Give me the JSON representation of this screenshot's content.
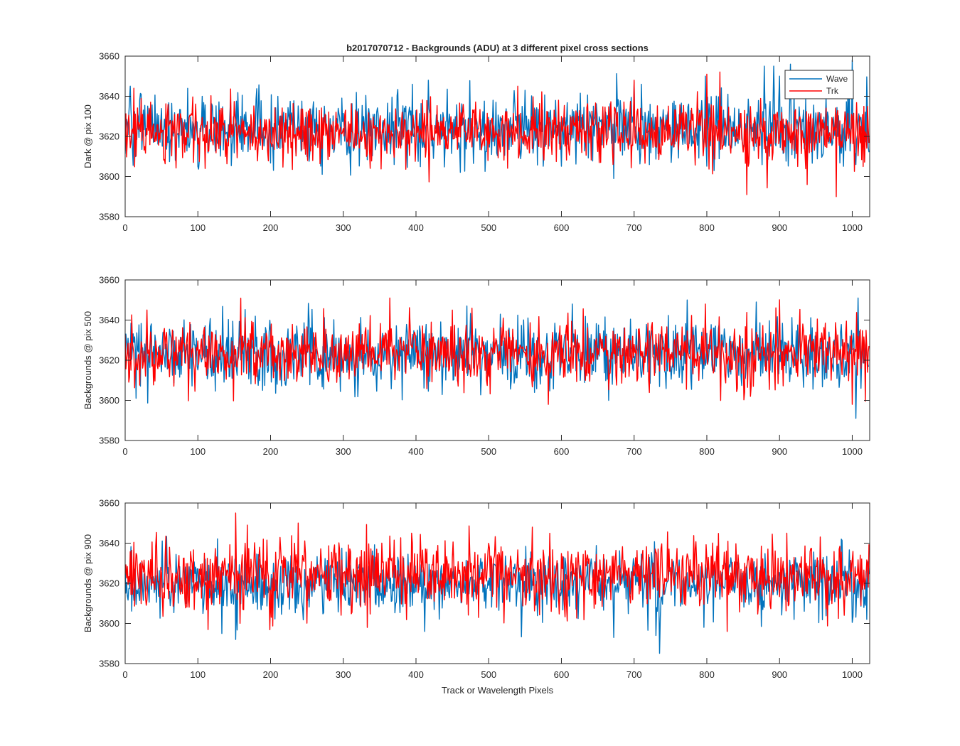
{
  "chart_data": [
    {
      "type": "line",
      "title": "b2017070712 - Backgrounds (ADU) at 3 different pixel cross sections",
      "xlabel": "",
      "ylabel": "Dark @ pix 100",
      "xlim": [
        0,
        1024
      ],
      "ylim": [
        3580,
        3660
      ],
      "xticks": [
        "0",
        "100",
        "200",
        "300",
        "400",
        "500",
        "600",
        "700",
        "800",
        "900",
        "1000"
      ],
      "yticks": [
        "3580",
        "3600",
        "3620",
        "3640",
        "3660"
      ],
      "legend": {
        "position": "top-right",
        "entries": [
          "Wave",
          "Trk"
        ]
      },
      "series": [
        {
          "name": "Wave",
          "color": "#0072BD",
          "mean": 3624,
          "std": 8.5,
          "seed": 101,
          "spikes": [
            [
              7,
              3645
            ],
            [
              100,
              3605
            ],
            [
              395,
              3646
            ],
            [
              417,
              3648
            ],
            [
              672,
              3599
            ],
            [
              700,
              3647
            ],
            [
              710,
              3646
            ],
            [
              798,
              3650
            ],
            [
              879,
              3655
            ],
            [
              892,
              3655
            ],
            [
              900,
              3650
            ],
            [
              915,
              3656
            ],
            [
              1000,
              3658
            ],
            [
              1005,
              3606
            ]
          ]
        },
        {
          "name": "Trk",
          "color": "#FF0000",
          "mean": 3622,
          "std": 7.5,
          "seed": 202,
          "spikes": [
            [
              12,
              3644
            ],
            [
              110,
              3604
            ],
            [
              540,
              3645
            ],
            [
              700,
              3648
            ],
            [
              800,
              3651
            ],
            [
              855,
              3591
            ],
            [
              938,
              3596
            ],
            [
              978,
              3590
            ],
            [
              1000,
              3630
            ],
            [
              1015,
              3605
            ]
          ]
        }
      ]
    },
    {
      "type": "line",
      "title": "",
      "xlabel": "",
      "ylabel": "Backgrounds @ pix 500",
      "xlim": [
        0,
        1024
      ],
      "ylim": [
        3580,
        3660
      ],
      "xticks": [
        "0",
        "100",
        "200",
        "300",
        "400",
        "500",
        "600",
        "700",
        "800",
        "900",
        "1000"
      ],
      "yticks": [
        "3580",
        "3600",
        "3620",
        "3640",
        "3660"
      ],
      "series": [
        {
          "name": "Wave",
          "color": "#0072BD",
          "mean": 3623,
          "std": 8.5,
          "seed": 303,
          "spikes": [
            [
              15,
              3601
            ],
            [
              470,
              3647
            ],
            [
              615,
              3648
            ],
            [
              665,
              3600
            ],
            [
              773,
              3650
            ],
            [
              868,
              3649
            ],
            [
              1005,
              3591
            ],
            [
              1008,
              3651
            ],
            [
              1012,
              3606
            ]
          ]
        },
        {
          "name": "Trk",
          "color": "#FF0000",
          "mean": 3623,
          "std": 8,
          "seed": 404,
          "spikes": [
            [
              30,
              3645
            ],
            [
              364,
              3651
            ],
            [
              582,
              3598
            ],
            [
              798,
              3648
            ],
            [
              1000,
              3598
            ]
          ]
        }
      ]
    },
    {
      "type": "line",
      "title": "",
      "xlabel": "Track or Wavelength Pixels",
      "ylabel": "Backgrounds @ pix 900",
      "xlim": [
        0,
        1024
      ],
      "ylim": [
        3580,
        3660
      ],
      "xticks": [
        "0",
        "100",
        "200",
        "300",
        "400",
        "500",
        "600",
        "700",
        "800",
        "900",
        "1000"
      ],
      "yticks": [
        "3580",
        "3600",
        "3620",
        "3640",
        "3660"
      ],
      "series": [
        {
          "name": "Wave",
          "color": "#0072BD",
          "mean": 3620,
          "std": 7.5,
          "seed": 505,
          "spikes": [
            [
              133,
              3595
            ],
            [
              152,
              3592
            ],
            [
              412,
              3596
            ],
            [
              672,
              3593
            ],
            [
              730,
              3594
            ],
            [
              985,
              3642
            ],
            [
              1020,
              3602
            ]
          ]
        },
        {
          "name": "Trk",
          "color": "#FF0000",
          "mean": 3624,
          "std": 8.5,
          "seed": 606,
          "spikes": [
            [
              152,
              3655
            ],
            [
              168,
              3649
            ],
            [
              238,
              3650
            ],
            [
              333,
              3598
            ],
            [
              560,
              3648
            ],
            [
              828,
              3596
            ]
          ]
        }
      ]
    }
  ]
}
